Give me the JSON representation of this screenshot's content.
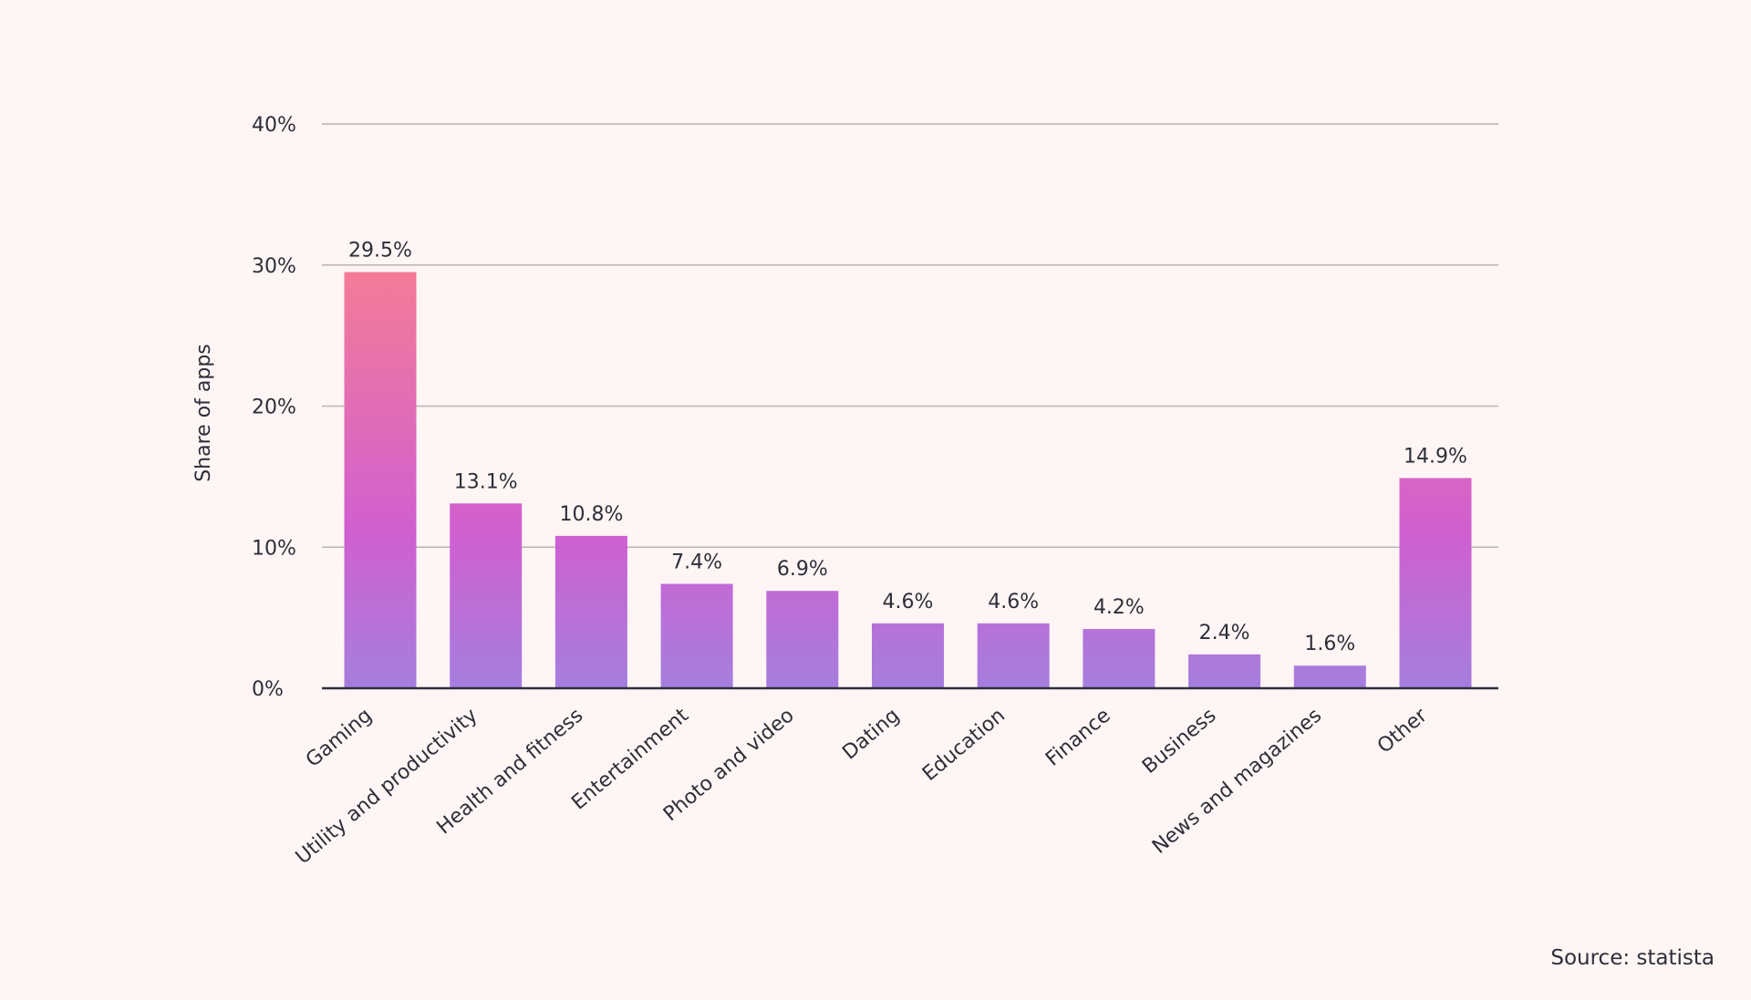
{
  "chart_data": {
    "type": "bar",
    "title": "",
    "xlabel": "",
    "ylabel": "Share of apps",
    "ylim": [
      0,
      40
    ],
    "yticks": [
      0,
      10,
      20,
      30,
      40
    ],
    "ytick_labels": [
      "0%",
      "10%",
      "20%",
      "30%",
      "40%"
    ],
    "grid": true,
    "categories": [
      "Gaming",
      "Utility and productivity",
      "Health and fitness",
      "Entertainment",
      "Photo and video",
      "Dating",
      "Education",
      "Finance",
      "Business",
      "News and magazines",
      "Other"
    ],
    "values": [
      29.5,
      13.1,
      10.8,
      7.4,
      6.9,
      4.6,
      4.6,
      4.2,
      2.4,
      1.6,
      14.9
    ],
    "data_labels": [
      "29.5%",
      "13.1%",
      "10.8%",
      "7.4%",
      "6.9%",
      "4.6%",
      "4.6%",
      "4.2%",
      "2.4%",
      "1.6%",
      "14.9%"
    ],
    "colors": {
      "gradient_top": "#f47b98",
      "gradient_mid": "#d05fd0",
      "gradient_bottom": "#a57ede",
      "grid": "#b9b2b4",
      "axis": "#2e2e3a",
      "text": "#2e2e3a",
      "background": "#fff5f4"
    }
  },
  "source": "Source: statista"
}
